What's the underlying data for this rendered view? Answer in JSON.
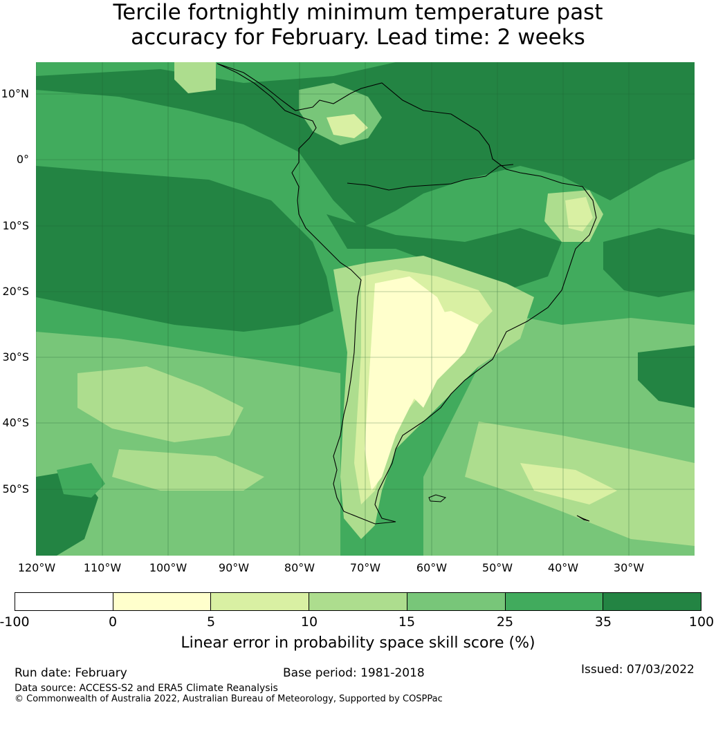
{
  "title": {
    "line1": "Tercile fortnightly minimum temperature past",
    "line2": "accuracy for February. Lead time: 2 weeks"
  },
  "map": {
    "lat_labels": [
      "10°N",
      "0°",
      "10°S",
      "20°S",
      "30°S",
      "40°S",
      "50°S"
    ],
    "lon_labels": [
      "120°W",
      "110°W",
      "100°W",
      "90°W",
      "80°W",
      "70°W",
      "60°W",
      "50°W",
      "40°W",
      "30°W"
    ],
    "region": "South America",
    "background_class_color": "#41ab5d"
  },
  "colorbar": {
    "ticks": [
      "-100",
      "0",
      "5",
      "10",
      "15",
      "25",
      "35",
      "100"
    ],
    "colors": [
      "#ffffff",
      "#ffffcc",
      "#d9f0a3",
      "#addd8e",
      "#78c679",
      "#41ab5d",
      "#238443"
    ],
    "label": "Linear error in probability space skill score (%)"
  },
  "footer": {
    "run_date": "Run date: February",
    "base_period": "Base period: 1981-2018",
    "issued": "Issued: 07/03/2022",
    "data_source": "Data source: ACCESS-S2 and ERA5 Climate Reanalysis",
    "copyright": "© Commonwealth of Australia 2022, Australian Bureau of Meteorology, Supported by COSPPac"
  }
}
